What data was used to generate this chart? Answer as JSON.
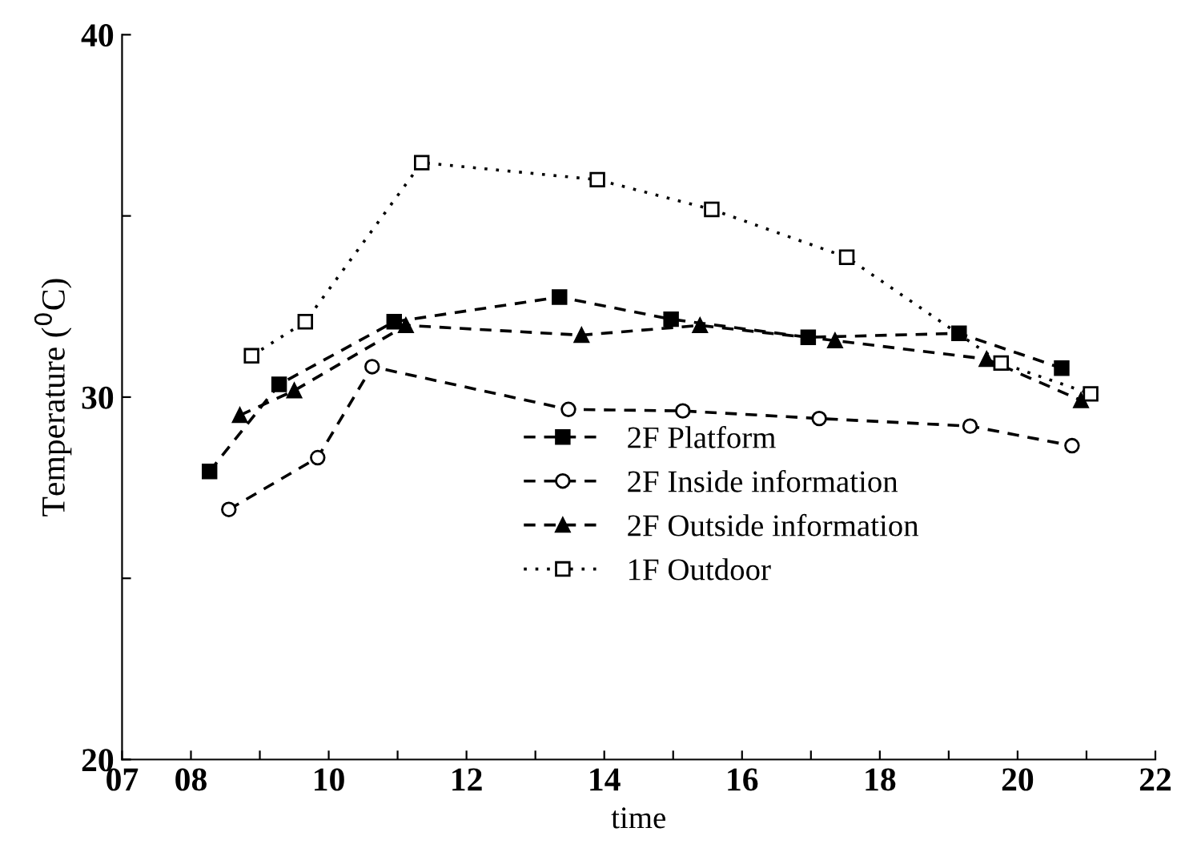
{
  "chart_data": {
    "type": "line",
    "xlabel": "time",
    "ylabel": "Temperature ($^{0}$C)",
    "xlim": [
      7,
      22
    ],
    "ylim": [
      20,
      40
    ],
    "xticks": [
      {
        "value": 7,
        "label": "07"
      },
      {
        "value": 8,
        "label": "08"
      },
      {
        "value": 9,
        "label": null
      },
      10,
      {
        "value": 11,
        "label": null
      },
      12,
      {
        "value": 13,
        "label": null
      },
      14,
      {
        "value": 15,
        "label": null
      },
      16,
      {
        "value": 17,
        "label": null
      },
      18,
      {
        "value": 19,
        "label": null
      },
      20,
      {
        "value": 21,
        "label": null
      },
      22
    ],
    "yticks": [
      20,
      {
        "value": 25,
        "label": null
      },
      30,
      {
        "value": 35,
        "label": null
      },
      40
    ],
    "grid": false,
    "legend": "bottom",
    "series": [
      {
        "name": "2F Platform",
        "color": "#000000",
        "marker": "square",
        "line_style": "dashed",
        "x": [
          8.27,
          9.28,
          10.95,
          13.35,
          14.97,
          16.96,
          19.15,
          20.64
        ],
        "values": [
          27.95,
          30.35,
          32.08,
          32.76,
          32.15,
          31.65,
          31.76,
          30.8
        ]
      },
      {
        "name": "2F Inside information",
        "color": "#000000",
        "marker": "circle",
        "line_style": "dashed",
        "x": [
          8.55,
          9.84,
          10.63,
          13.48,
          15.14,
          17.12,
          19.31,
          20.79
        ],
        "values": [
          26.9,
          28.33,
          30.84,
          29.66,
          29.62,
          29.41,
          29.2,
          28.66
        ]
      },
      {
        "name": "2F Outside information",
        "color": "#000000",
        "marker": "triangle",
        "line_style": "dashed",
        "x": [
          8.71,
          9.5,
          11.12,
          13.67,
          15.39,
          17.35,
          19.55,
          20.92
        ],
        "values": [
          29.5,
          30.18,
          31.98,
          31.71,
          31.98,
          31.56,
          31.05,
          29.91
        ]
      },
      {
        "name": "1F Outdoor",
        "color": "#000000",
        "marker": "square",
        "line_style": "dotted",
        "x": [
          8.88,
          9.66,
          11.35,
          13.9,
          15.56,
          17.52,
          19.76,
          21.06
        ],
        "values": [
          31.14,
          32.08,
          36.47,
          36.0,
          35.18,
          33.86,
          30.94,
          30.09
        ]
      }
    ]
  }
}
